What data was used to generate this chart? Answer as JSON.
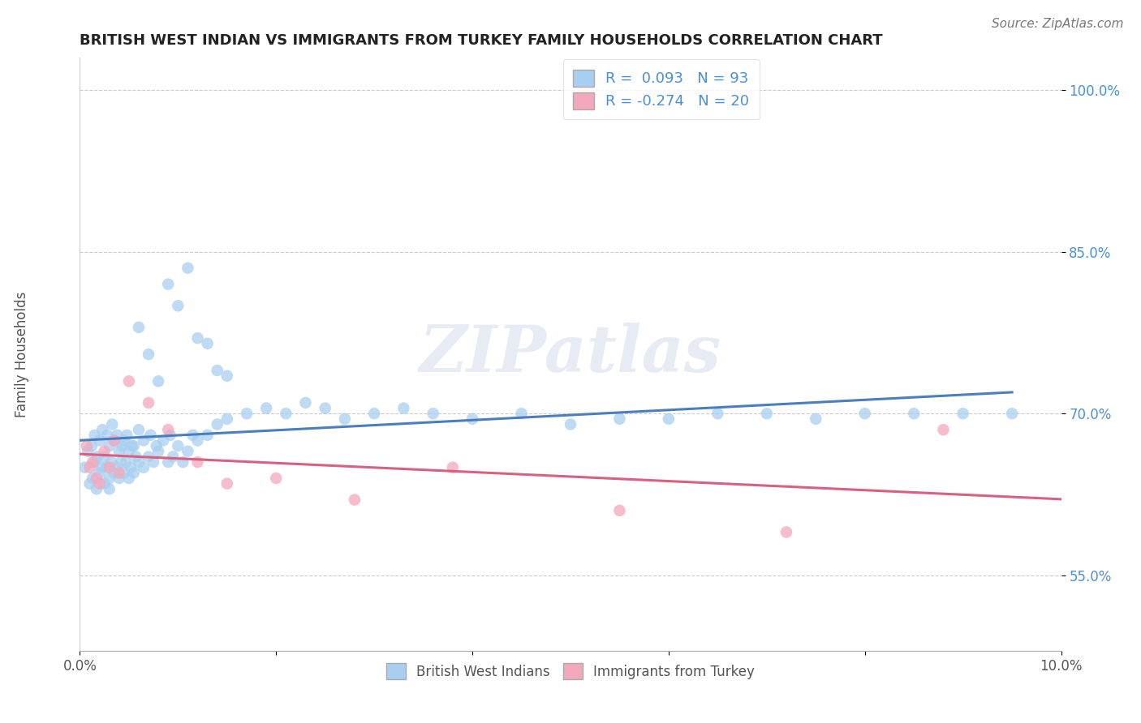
{
  "title": "BRITISH WEST INDIAN VS IMMIGRANTS FROM TURKEY FAMILY HOUSEHOLDS CORRELATION CHART",
  "source_text": "Source: ZipAtlas.com",
  "ylabel": "Family Households",
  "xlim": [
    0.0,
    10.0
  ],
  "ylim": [
    48.0,
    103.0
  ],
  "yticks": [
    55.0,
    70.0,
    85.0,
    100.0
  ],
  "xtick_labels": [
    "0.0%",
    "",
    "",
    "",
    "",
    "10.0%"
  ],
  "ytick_labels": [
    "55.0%",
    "70.0%",
    "85.0%",
    "100.0%"
  ],
  "blue_color": "#a8cff0",
  "pink_color": "#f4a8bc",
  "blue_line_color": "#4a7fbf",
  "pink_line_color": "#d96080",
  "R_blue": 0.093,
  "N_blue": 93,
  "R_pink": -0.274,
  "N_pink": 20,
  "watermark": "ZIPatlas",
  "blue_x": [
    0.05,
    0.08,
    0.1,
    0.12,
    0.13,
    0.15,
    0.15,
    0.17,
    0.18,
    0.2,
    0.2,
    0.22,
    0.23,
    0.25,
    0.25,
    0.27,
    0.28,
    0.3,
    0.3,
    0.3,
    0.32,
    0.33,
    0.35,
    0.35,
    0.37,
    0.38,
    0.4,
    0.4,
    0.42,
    0.43,
    0.45,
    0.45,
    0.47,
    0.48,
    0.5,
    0.5,
    0.52,
    0.53,
    0.55,
    0.55,
    0.57,
    0.6,
    0.6,
    0.65,
    0.65,
    0.7,
    0.72,
    0.75,
    0.78,
    0.8,
    0.85,
    0.9,
    0.92,
    0.95,
    1.0,
    1.05,
    1.1,
    1.15,
    1.2,
    1.3,
    1.4,
    1.5,
    1.7,
    1.9,
    2.1,
    2.3,
    2.5,
    2.7,
    3.0,
    3.3,
    3.6,
    4.0,
    4.5,
    5.0,
    5.5,
    6.0,
    6.5,
    7.0,
    7.5,
    8.0,
    8.5,
    9.0,
    9.5,
    0.6,
    0.7,
    0.8,
    0.9,
    1.0,
    1.1,
    1.2,
    1.3,
    1.4,
    1.5
  ],
  "blue_y": [
    65.0,
    66.5,
    63.5,
    67.0,
    64.0,
    65.5,
    68.0,
    63.0,
    66.0,
    64.5,
    67.5,
    65.0,
    68.5,
    63.5,
    66.0,
    65.0,
    68.0,
    64.0,
    67.0,
    63.0,
    65.5,
    69.0,
    64.5,
    67.5,
    65.0,
    68.0,
    64.0,
    66.5,
    65.5,
    67.0,
    64.5,
    67.5,
    65.5,
    68.0,
    64.0,
    66.5,
    65.0,
    67.0,
    64.5,
    67.0,
    66.0,
    65.5,
    68.5,
    65.0,
    67.5,
    66.0,
    68.0,
    65.5,
    67.0,
    66.5,
    67.5,
    65.5,
    68.0,
    66.0,
    67.0,
    65.5,
    66.5,
    68.0,
    67.5,
    68.0,
    69.0,
    69.5,
    70.0,
    70.5,
    70.0,
    71.0,
    70.5,
    69.5,
    70.0,
    70.5,
    70.0,
    69.5,
    70.0,
    69.0,
    69.5,
    69.5,
    70.0,
    70.0,
    69.5,
    70.0,
    70.0,
    70.0,
    70.0,
    78.0,
    75.5,
    73.0,
    82.0,
    80.0,
    83.5,
    77.0,
    76.5,
    74.0,
    73.5
  ],
  "pink_x": [
    0.07,
    0.1,
    0.13,
    0.17,
    0.2,
    0.25,
    0.3,
    0.35,
    0.4,
    0.5,
    0.7,
    0.9,
    1.2,
    1.5,
    2.0,
    2.8,
    3.8,
    5.5,
    7.2,
    8.8
  ],
  "pink_y": [
    67.0,
    65.0,
    65.5,
    64.0,
    63.5,
    66.5,
    65.0,
    67.5,
    64.5,
    73.0,
    71.0,
    68.5,
    65.5,
    63.5,
    64.0,
    62.0,
    65.0,
    61.0,
    59.0,
    68.5
  ]
}
